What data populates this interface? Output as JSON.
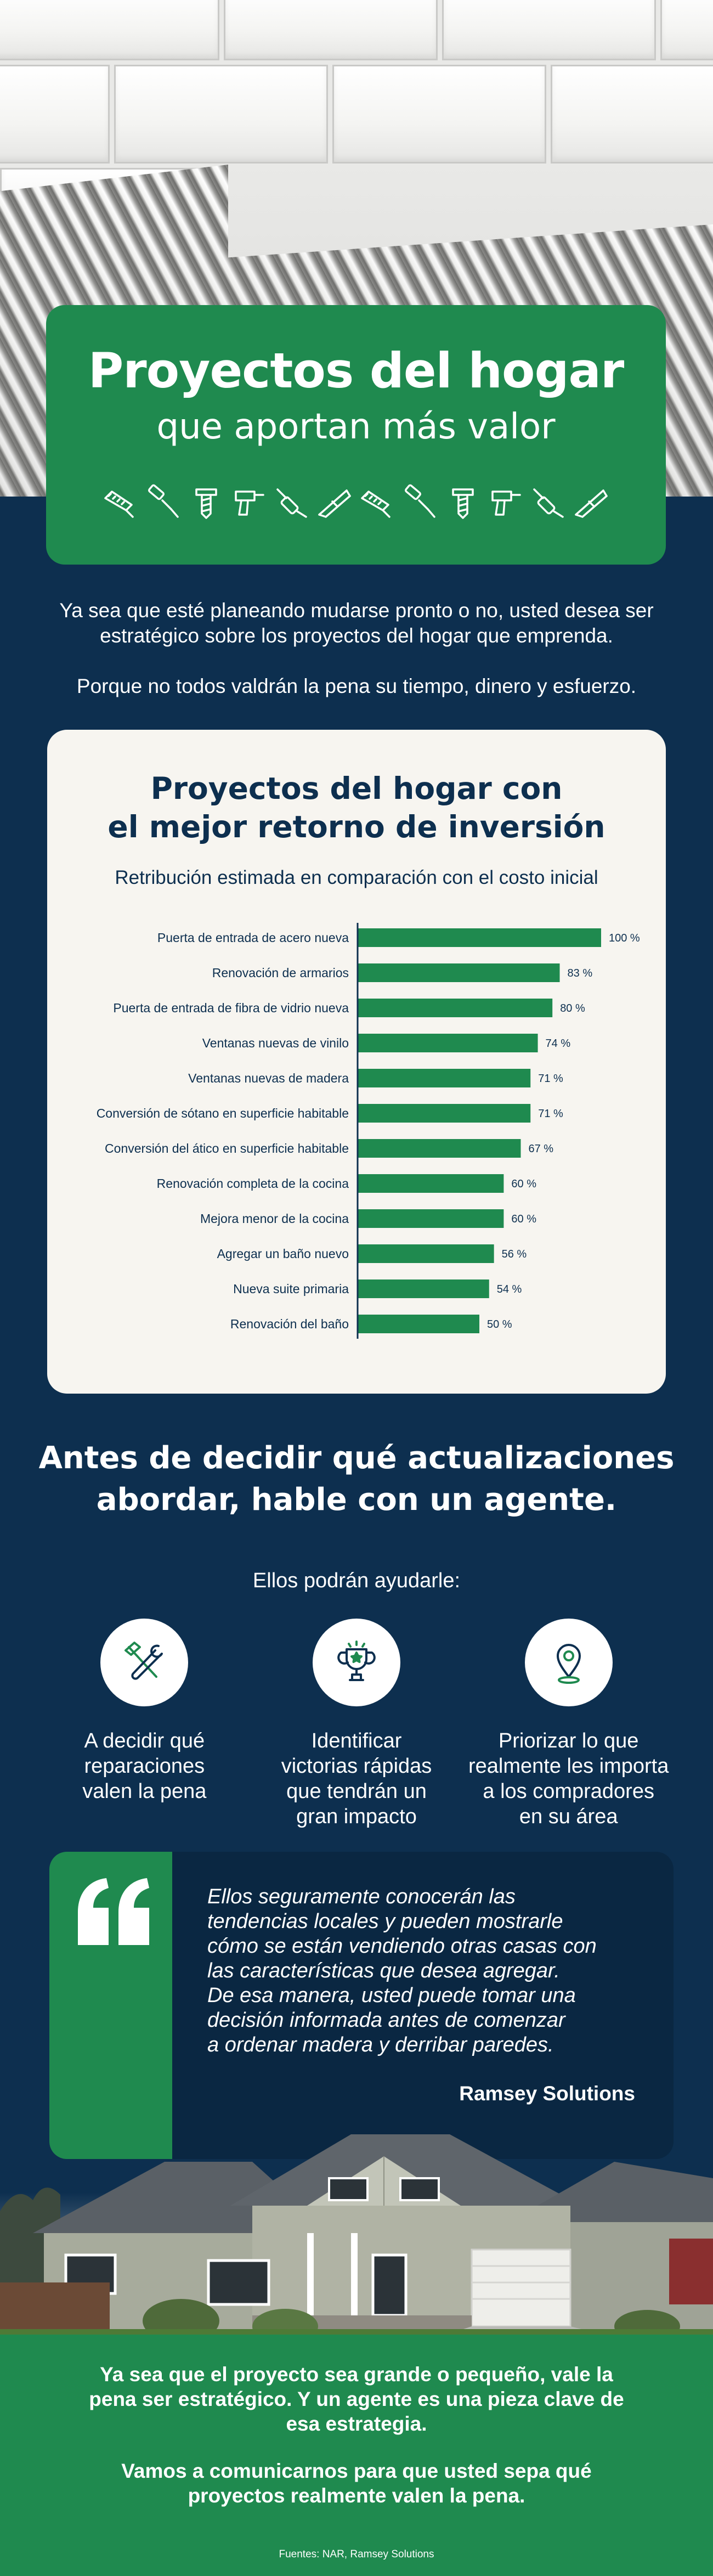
{
  "hero": {
    "title": "Proyectos del hogar",
    "subtitle": "que aportan más valor",
    "tool_icons": [
      "saw-icon",
      "paint-roller-icon",
      "screw-icon",
      "drill-icon",
      "screwdriver-icon",
      "level-icon",
      "saw-icon",
      "paint-roller-icon",
      "screw-icon",
      "drill-icon",
      "screwdriver-icon",
      "level-icon"
    ]
  },
  "intro": {
    "p1": "Ya sea que esté planeando mudarse pronto o no, usted desea ser estratégico sobre los proyectos del hogar que emprenda.",
    "p2": "Porque no todos valdrán la pena su tiempo, dinero y esfuerzo."
  },
  "chart_section": {
    "title_line1": "Proyectos del hogar con",
    "title_line2": "el mejor retorno de inversión",
    "subtitle": "Retribución estimada en comparación con el costo inicial"
  },
  "chart_data": {
    "type": "bar",
    "orientation": "horizontal",
    "categories": [
      "Puerta de entrada de acero nueva",
      "Renovación de armarios",
      "Puerta de entrada de fibra de vidrio nueva",
      "Ventanas nuevas de vinilo",
      "Ventanas nuevas de madera",
      "Conversión de sótano en superficie habitable",
      "Conversión del ático en superficie habitable",
      "Renovación completa de la cocina",
      "Mejora menor de la cocina",
      "Agregar un baño nuevo",
      "Nueva suite primaria",
      "Renovación del baño"
    ],
    "values": [
      100,
      83,
      80,
      74,
      71,
      71,
      67,
      60,
      60,
      56,
      54,
      50
    ],
    "value_suffix": " %",
    "xlim": [
      0,
      100
    ],
    "grid": false,
    "bar_color": "#1f8a4f"
  },
  "agent": {
    "title_line1": "Antes de decidir qué actualizaciones",
    "title_line2": "abordar, hable con un agente.",
    "lead": "Ellos podrán ayudarle:",
    "items": [
      {
        "icon": "hammer-wrench-icon",
        "line1": "A decidir qué",
        "line2": "reparaciones",
        "line3": "valen la pena",
        "line4": ""
      },
      {
        "icon": "trophy-icon",
        "line1": "Identificar",
        "line2": "victorias rápidas",
        "line3": "que tendrán un",
        "line4": "gran impacto"
      },
      {
        "icon": "location-pin-icon",
        "line1": "Priorizar lo que",
        "line2": "realmente les importa",
        "line3": "a los compradores",
        "line4": "en su área"
      }
    ]
  },
  "quote": {
    "lines": [
      "Ellos seguramente conocerán las",
      "tendencias locales y pueden mostrarle",
      "cómo se están vendiendo otras casas con",
      "las características que desea agregar.",
      "De esa manera, usted puede tomar una",
      "decisión informada antes de comenzar",
      "a ordenar madera y derribar paredes."
    ],
    "author": "Ramsey Solutions"
  },
  "footer": {
    "p1": "Ya sea que el proyecto sea grande o pequeño, vale la pena ser estratégico. Y un agente es una pieza clave de esa estrategia.",
    "p2": "Vamos a comunicarnos para que usted sepa qué proyectos realmente valen la pena.",
    "sources": "Fuentes: NAR, Ramsey Solutions"
  },
  "colors": {
    "navy": "#0d2f4f",
    "green": "#1f8a4f",
    "cream": "#f7f5f0"
  }
}
